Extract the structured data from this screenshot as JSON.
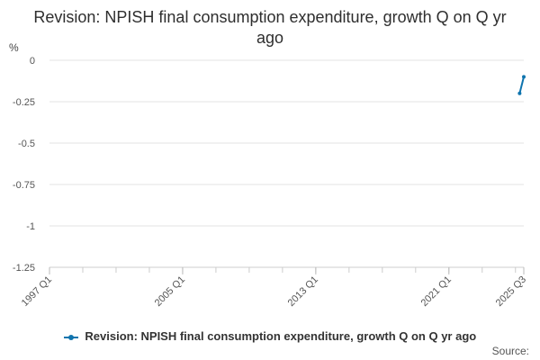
{
  "chart_data": {
    "type": "line",
    "title": "Revision: NPISH final consumption expenditure, growth Q on Q yr ago",
    "ylabel": "%",
    "xlabel": "",
    "ylim": [
      -1.25,
      0
    ],
    "y_ticks": [
      "0",
      "-0.25",
      "-0.5",
      "-0.75",
      "-1",
      "-1.25"
    ],
    "x_ticks": [
      "1997 Q1",
      "2005 Q1",
      "2013 Q1",
      "2021 Q1",
      "2025 Q3"
    ],
    "x_range": [
      "1997 Q1",
      "2025 Q3"
    ],
    "grid": true,
    "legend_position": "bottom",
    "series": [
      {
        "name": "Revision: NPISH final consumption expenditure, growth Q on Q yr ago",
        "color": "#0f74ae",
        "points": [
          {
            "x": "2025 Q2",
            "y": -0.2
          },
          {
            "x": "2025 Q3",
            "y": -0.1
          }
        ]
      }
    ]
  },
  "source_label": "Source:"
}
